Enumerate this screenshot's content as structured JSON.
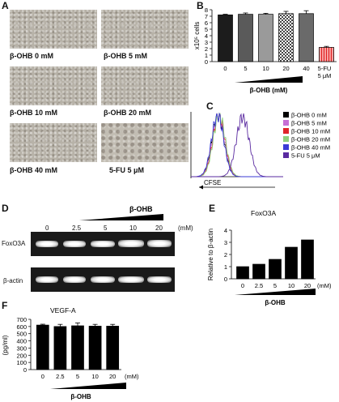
{
  "panels": {
    "A": {
      "label": "A",
      "captions": [
        "β-OHB 0 mM",
        "β-OHB 5 mM",
        "β-OHB 10 mM",
        "β-OHB 20 mM",
        "β-OHB 40 mM",
        "5-FU 5 μM"
      ]
    },
    "B": {
      "label": "B",
      "ylabel": "x10⁵ cells",
      "xlabel": "β-OHB (mM)",
      "fu_label_1": "5-FU",
      "fu_label_2": "5 μM"
    },
    "C": {
      "label": "C",
      "xlabel": "CFSE",
      "legend": [
        {
          "text": "β-OHB 0 mM",
          "color": "#000000"
        },
        {
          "text": "β-OHB 5 mM",
          "color": "#c76fd6"
        },
        {
          "text": "β-OHB 10 mM",
          "color": "#e0252a"
        },
        {
          "text": "β-OHB 20 mM",
          "color": "#8fd07c"
        },
        {
          "text": "β-OHB 40 mM",
          "color": "#3b3bd6"
        },
        {
          "text": "5-FU 5 μM",
          "color": "#5a2aa0"
        }
      ]
    },
    "D": {
      "label": "D",
      "header": "β-OHB",
      "unit": "(mM)",
      "conc": [
        "0",
        "2.5",
        "5",
        "10",
        "20"
      ],
      "row1": "FoxO3A",
      "row2": "β-actin"
    },
    "E": {
      "label": "E",
      "title": "FoxO3A",
      "ylabel": "Relative to β-actin",
      "xlabel": "β-OHB",
      "unit": "(mM)"
    },
    "F": {
      "label": "F",
      "title": "VEGF-A",
      "ylabel": "(pg/ml)",
      "xlabel": "β-OHB",
      "unit": "(mM)"
    }
  },
  "chart_data": [
    {
      "id": "B",
      "type": "bar",
      "categories": [
        "0",
        "5",
        "10",
        "20",
        "40",
        "5-FU 5 μM"
      ],
      "values": [
        7.2,
        7.3,
        7.3,
        7.4,
        7.4,
        2.2
      ],
      "errors": [
        0.1,
        0.2,
        0.15,
        0.35,
        0.45,
        0.15
      ],
      "ylim": [
        0,
        8
      ],
      "yticks": [
        0,
        1,
        2,
        3,
        4,
        5,
        6,
        7,
        8
      ],
      "xlabel": "β-OHB (mM)",
      "ylabel": "x10⁵ cells"
    },
    {
      "id": "E",
      "type": "bar",
      "categories": [
        "0",
        "2.5",
        "5",
        "10",
        "20"
      ],
      "values": [
        1.0,
        1.2,
        1.6,
        2.6,
        3.2
      ],
      "ylim": [
        0,
        4
      ],
      "yticks": [
        0,
        1,
        2,
        3,
        4
      ],
      "title": "FoxO3A",
      "ylabel": "Relative to β-actin",
      "xlabel": "β-OHB"
    },
    {
      "id": "F",
      "type": "bar",
      "categories": [
        "0",
        "2.5",
        "5",
        "10",
        "20"
      ],
      "values": [
        620,
        600,
        610,
        605,
        605
      ],
      "errors": [
        12,
        30,
        40,
        25,
        25
      ],
      "ylim": [
        0,
        700
      ],
      "yticks": [
        0,
        100,
        200,
        300,
        400,
        500,
        600,
        700
      ],
      "title": "VEGF-A",
      "ylabel": "(pg/ml)",
      "xlabel": "β-OHB"
    }
  ]
}
